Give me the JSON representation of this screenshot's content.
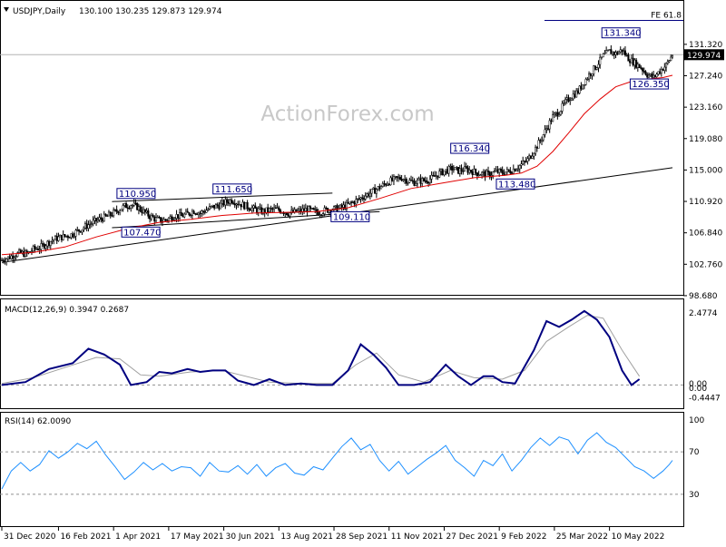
{
  "chart_data": {
    "type": "candlestick",
    "symbol_header": "USDJPY,Daily",
    "ohlc_header": "130.100 130.235 129.873 129.974",
    "watermark": "ActionForex.com",
    "price_axis": {
      "ticks": [
        "131.320",
        "127.240",
        "123.160",
        "119.080",
        "115.000",
        "110.920",
        "106.840",
        "102.760",
        "98.680"
      ],
      "last_price": "129.974",
      "range": [
        98.2,
        135.9
      ]
    },
    "x_ticks": [
      "31 Dec 2020",
      "16 Feb 2021",
      "1 Apr 2021",
      "17 May 2021",
      "30 Jun 2021",
      "13 Aug 2021",
      "28 Sep 2021",
      "11 Nov 2021",
      "27 Dec 2021",
      "9 Feb 2022",
      "25 Mar 2022",
      "10 May 2022"
    ],
    "fib_label": "FE 61.8",
    "fib_level": 134.9,
    "price_labels": [
      {
        "text": "110.950",
        "price": 110.95
      },
      {
        "text": "111.650",
        "price": 111.65
      },
      {
        "text": "107.470",
        "price": 107.47
      },
      {
        "text": "109.110",
        "price": 109.11
      },
      {
        "text": "116.340",
        "price": 116.34
      },
      {
        "text": "113.480",
        "price": 113.48
      },
      {
        "text": "131.340",
        "price": 131.34
      },
      {
        "text": "126.350",
        "price": 126.35
      }
    ],
    "price_path": [
      [
        0,
        103.3
      ],
      [
        4,
        103.6
      ],
      [
        8,
        104.0
      ],
      [
        12,
        104.2
      ],
      [
        16,
        104.1
      ],
      [
        20,
        104.7
      ],
      [
        24,
        104.9
      ],
      [
        28,
        105.4
      ],
      [
        33,
        106.0
      ],
      [
        38,
        106.3
      ],
      [
        44,
        106.6
      ],
      [
        50,
        107.3
      ],
      [
        56,
        108.0
      ],
      [
        62,
        108.6
      ],
      [
        66,
        108.9
      ],
      [
        70,
        109.3
      ],
      [
        74,
        109.8
      ],
      [
        78,
        110.3
      ],
      [
        82,
        110.5
      ],
      [
        86,
        110.2
      ],
      [
        90,
        109.6
      ],
      [
        94,
        109.0
      ],
      [
        98,
        108.6
      ],
      [
        102,
        108.4
      ],
      [
        106,
        108.7
      ],
      [
        110,
        109.1
      ],
      [
        114,
        109.0
      ],
      [
        118,
        109.3
      ],
      [
        122,
        109.7
      ],
      [
        126,
        109.4
      ],
      [
        130,
        109.8
      ],
      [
        134,
        110.2
      ],
      [
        138,
        110.4
      ],
      [
        142,
        110.8
      ],
      [
        146,
        111.1
      ],
      [
        150,
        110.7
      ],
      [
        154,
        110.4
      ],
      [
        158,
        110.1
      ],
      [
        162,
        109.8
      ],
      [
        166,
        109.6
      ],
      [
        170,
        109.8
      ],
      [
        174,
        109.9
      ],
      [
        178,
        109.7
      ],
      [
        182,
        109.4
      ],
      [
        186,
        109.5
      ],
      [
        190,
        109.7
      ],
      [
        194,
        109.9
      ],
      [
        198,
        109.6
      ],
      [
        202,
        109.5
      ],
      [
        206,
        109.8
      ],
      [
        210,
        109.9
      ],
      [
        214,
        110.0
      ],
      [
        218,
        110.3
      ],
      [
        222,
        110.7
      ],
      [
        226,
        111.1
      ],
      [
        230,
        111.6
      ],
      [
        234,
        112.0
      ],
      [
        238,
        112.5
      ],
      [
        242,
        113.0
      ],
      [
        246,
        113.5
      ],
      [
        250,
        113.8
      ],
      [
        254,
        114.0
      ],
      [
        258,
        113.6
      ],
      [
        262,
        113.4
      ],
      [
        266,
        113.6
      ],
      [
        270,
        113.7
      ],
      [
        274,
        114.0
      ],
      [
        278,
        114.6
      ],
      [
        282,
        114.9
      ],
      [
        286,
        115.2
      ],
      [
        290,
        114.9
      ],
      [
        294,
        115.1
      ],
      [
        298,
        114.9
      ],
      [
        302,
        114.6
      ],
      [
        306,
        114.5
      ],
      [
        310,
        114.4
      ],
      [
        314,
        114.8
      ],
      [
        318,
        114.7
      ],
      [
        322,
        114.8
      ],
      [
        326,
        115.2
      ],
      [
        330,
        115.7
      ],
      [
        334,
        116.3
      ],
      [
        338,
        117.5
      ],
      [
        342,
        118.8
      ],
      [
        346,
        120.4
      ],
      [
        350,
        121.9
      ],
      [
        354,
        122.6
      ],
      [
        358,
        123.8
      ],
      [
        362,
        124.6
      ],
      [
        366,
        125.2
      ],
      [
        370,
        126.5
      ],
      [
        374,
        127.6
      ],
      [
        378,
        128.6
      ],
      [
        382,
        129.8
      ],
      [
        386,
        130.4
      ],
      [
        390,
        130.1
      ],
      [
        394,
        130.6
      ],
      [
        398,
        129.5
      ],
      [
        402,
        128.9
      ],
      [
        406,
        128.3
      ],
      [
        410,
        127.4
      ],
      [
        414,
        127.0
      ],
      [
        418,
        127.9
      ],
      [
        422,
        128.6
      ],
      [
        424,
        129.3
      ],
      [
        426,
        129.97
      ]
    ],
    "ma_path": [
      [
        0,
        104.0
      ],
      [
        20,
        104.3
      ],
      [
        40,
        105.0
      ],
      [
        60,
        106.3
      ],
      [
        80,
        107.4
      ],
      [
        100,
        108.2
      ],
      [
        120,
        108.6
      ],
      [
        140,
        109.1
      ],
      [
        160,
        109.4
      ],
      [
        180,
        109.5
      ],
      [
        200,
        109.6
      ],
      [
        220,
        110.1
      ],
      [
        240,
        111.3
      ],
      [
        260,
        112.6
      ],
      [
        280,
        113.3
      ],
      [
        300,
        114.0
      ],
      [
        320,
        114.3
      ],
      [
        330,
        114.6
      ],
      [
        340,
        115.5
      ],
      [
        350,
        117.4
      ],
      [
        360,
        119.8
      ],
      [
        370,
        122.3
      ],
      [
        380,
        124.2
      ],
      [
        390,
        125.8
      ],
      [
        400,
        126.5
      ],
      [
        410,
        126.8
      ],
      [
        420,
        127.0
      ],
      [
        426,
        127.3
      ]
    ],
    "trend_lines": [
      {
        "from": [
          0,
          103.0
        ],
        "to": [
          426,
          115.3
        ]
      },
      {
        "from": [
          70,
          110.9
        ],
        "to": [
          210,
          112.0
        ]
      },
      {
        "from": [
          70,
          107.5
        ],
        "to": [
          240,
          109.6
        ]
      }
    ],
    "indicators": [
      {
        "name": "MACD",
        "header": "MACD(12,26,9) 0.3947 0.2687",
        "ticks": [
          "2.4774",
          "0.00",
          "0.00",
          "-0.4447"
        ],
        "range": [
          -0.8,
          2.7
        ],
        "main_path": [
          [
            0,
            0.0
          ],
          [
            15,
            0.1
          ],
          [
            30,
            0.55
          ],
          [
            45,
            0.75
          ],
          [
            55,
            1.25
          ],
          [
            65,
            1.05
          ],
          [
            75,
            0.7
          ],
          [
            82,
            0.0
          ],
          [
            92,
            0.1
          ],
          [
            100,
            0.45
          ],
          [
            108,
            0.4
          ],
          [
            118,
            0.55
          ],
          [
            126,
            0.45
          ],
          [
            134,
            0.5
          ],
          [
            142,
            0.5
          ],
          [
            150,
            0.15
          ],
          [
            160,
            0.0
          ],
          [
            170,
            0.2
          ],
          [
            180,
            0.0
          ],
          [
            190,
            0.05
          ],
          [
            200,
            0.0
          ],
          [
            210,
            0.0
          ],
          [
            220,
            0.5
          ],
          [
            228,
            1.4
          ],
          [
            236,
            1.05
          ],
          [
            244,
            0.6
          ],
          [
            252,
            0.0
          ],
          [
            262,
            0.0
          ],
          [
            272,
            0.1
          ],
          [
            282,
            0.7
          ],
          [
            290,
            0.3
          ],
          [
            298,
            0.0
          ],
          [
            306,
            0.3
          ],
          [
            312,
            0.3
          ],
          [
            318,
            0.1
          ],
          [
            326,
            0.05
          ],
          [
            338,
            1.2
          ],
          [
            346,
            2.2
          ],
          [
            354,
            2.0
          ],
          [
            362,
            2.25
          ],
          [
            370,
            2.55
          ],
          [
            378,
            2.25
          ],
          [
            386,
            1.65
          ],
          [
            394,
            0.5
          ],
          [
            400,
            0.0
          ],
          [
            405,
            0.2
          ]
        ],
        "signal_path": [
          [
            0,
            0.05
          ],
          [
            20,
            0.25
          ],
          [
            40,
            0.6
          ],
          [
            60,
            0.95
          ],
          [
            75,
            0.9
          ],
          [
            88,
            0.35
          ],
          [
            100,
            0.3
          ],
          [
            120,
            0.45
          ],
          [
            140,
            0.5
          ],
          [
            155,
            0.3
          ],
          [
            170,
            0.1
          ],
          [
            190,
            0.05
          ],
          [
            210,
            0.05
          ],
          [
            225,
            0.7
          ],
          [
            238,
            1.1
          ],
          [
            252,
            0.35
          ],
          [
            268,
            0.1
          ],
          [
            285,
            0.5
          ],
          [
            300,
            0.25
          ],
          [
            318,
            0.2
          ],
          [
            332,
            0.5
          ],
          [
            346,
            1.5
          ],
          [
            360,
            2.0
          ],
          [
            372,
            2.4
          ],
          [
            382,
            2.3
          ],
          [
            394,
            1.2
          ],
          [
            405,
            0.3
          ]
        ]
      },
      {
        "name": "RSI",
        "header": "RSI(14) 62.0090",
        "ticks": [
          "100",
          "70",
          "30"
        ],
        "range": [
          0,
          100
        ],
        "levels": [
          70,
          30
        ],
        "path": [
          [
            0,
            35
          ],
          [
            6,
            52
          ],
          [
            12,
            60
          ],
          [
            18,
            52
          ],
          [
            24,
            58
          ],
          [
            30,
            71
          ],
          [
            36,
            64
          ],
          [
            42,
            70
          ],
          [
            48,
            78
          ],
          [
            54,
            73
          ],
          [
            60,
            80
          ],
          [
            66,
            67
          ],
          [
            72,
            56
          ],
          [
            78,
            44
          ],
          [
            84,
            51
          ],
          [
            90,
            60
          ],
          [
            96,
            53
          ],
          [
            102,
            59
          ],
          [
            108,
            52
          ],
          [
            114,
            56
          ],
          [
            120,
            55
          ],
          [
            126,
            47
          ],
          [
            132,
            60
          ],
          [
            138,
            52
          ],
          [
            144,
            51
          ],
          [
            150,
            57
          ],
          [
            156,
            49
          ],
          [
            162,
            58
          ],
          [
            168,
            47
          ],
          [
            174,
            55
          ],
          [
            180,
            59
          ],
          [
            186,
            50
          ],
          [
            192,
            48
          ],
          [
            198,
            56
          ],
          [
            204,
            53
          ],
          [
            210,
            64
          ],
          [
            216,
            75
          ],
          [
            222,
            83
          ],
          [
            228,
            72
          ],
          [
            234,
            77
          ],
          [
            240,
            62
          ],
          [
            246,
            52
          ],
          [
            252,
            61
          ],
          [
            258,
            49
          ],
          [
            264,
            56
          ],
          [
            270,
            63
          ],
          [
            276,
            69
          ],
          [
            282,
            76
          ],
          [
            288,
            62
          ],
          [
            294,
            55
          ],
          [
            300,
            47
          ],
          [
            306,
            62
          ],
          [
            312,
            57
          ],
          [
            318,
            68
          ],
          [
            324,
            52
          ],
          [
            330,
            62
          ],
          [
            336,
            74
          ],
          [
            342,
            83
          ],
          [
            348,
            76
          ],
          [
            354,
            84
          ],
          [
            360,
            81
          ],
          [
            366,
            68
          ],
          [
            372,
            81
          ],
          [
            378,
            88
          ],
          [
            384,
            79
          ],
          [
            390,
            74
          ],
          [
            396,
            65
          ],
          [
            402,
            56
          ],
          [
            408,
            52
          ],
          [
            414,
            45
          ],
          [
            420,
            52
          ],
          [
            424,
            58
          ],
          [
            426,
            62
          ]
        ]
      }
    ]
  }
}
